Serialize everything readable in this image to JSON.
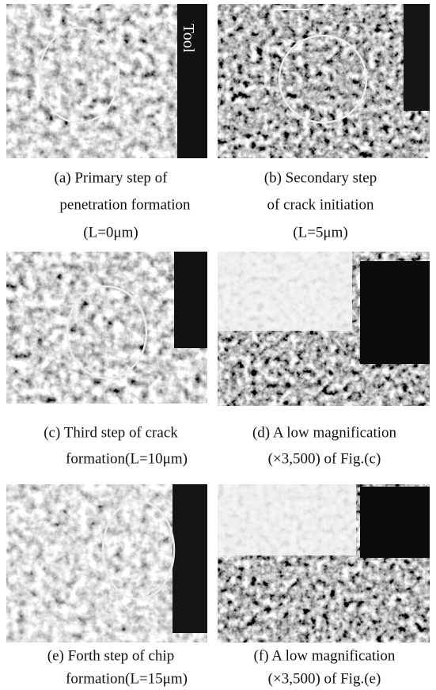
{
  "figure": {
    "tool_label": "Tool",
    "panels": [
      {
        "caption": [
          "(a) Primary step of",
          "penetration formation",
          "(L=0μm)"
        ]
      },
      {
        "caption": [
          "(b) Secondary step",
          "of crack initiation",
          "(L=5μm)"
        ]
      },
      {
        "caption": [
          "(c) Third step of crack",
          "formation(L=10μm)"
        ]
      },
      {
        "caption": [
          "(d) A low magnification",
          "(×3,500) of Fig.(c)"
        ]
      },
      {
        "caption": [
          "(e) Forth step of chip",
          "formation(L=15μm)"
        ]
      },
      {
        "caption": [
          "(f) A low magnification",
          "(×3,500) of Fig.(e)"
        ]
      }
    ]
  }
}
